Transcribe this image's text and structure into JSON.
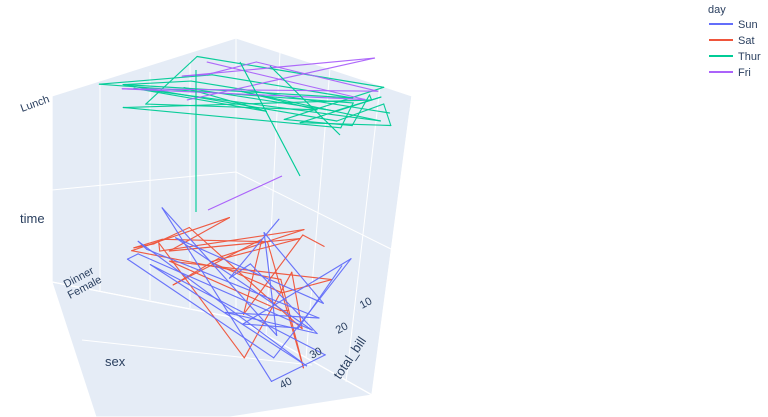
{
  "chart_data": {
    "type": "line",
    "title": "",
    "xlabel": "total_bill",
    "ylabel": "sex",
    "zlabel": "time",
    "x_ticks": [
      "10",
      "20",
      "30",
      "40"
    ],
    "y_ticks": [
      "Female"
    ],
    "z_ticks": [
      "Lunch",
      "Dinner"
    ],
    "legend": {
      "title": "day",
      "placement": "top-right"
    },
    "colors": {
      "Sun": "#636efa",
      "Sat": "#ef553b",
      "Thur": "#00cc96",
      "Fri": "#ab63fa",
      "pane": "#e5ecf6",
      "grid": "#ffffff",
      "text": "#2a3f5f"
    },
    "series": [
      {
        "name": "Sun",
        "lines": 24
      },
      {
        "name": "Sat",
        "lines": 28
      },
      {
        "name": "Thur",
        "lines": 28
      },
      {
        "name": "Fri",
        "lines": 8
      }
    ]
  }
}
